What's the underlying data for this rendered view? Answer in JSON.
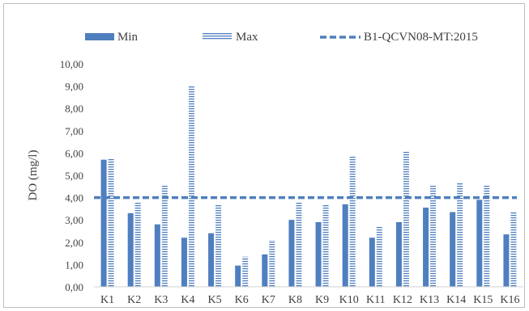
{
  "chart_data": {
    "type": "bar",
    "title": "",
    "xlabel": "",
    "ylabel": "DO (mg/l)",
    "ylim": [
      0,
      10
    ],
    "ytick_step": 1,
    "ytick_labels": [
      "0,00",
      "1,00",
      "2,00",
      "3,00",
      "4,00",
      "5,00",
      "6,00",
      "7,00",
      "8,00",
      "9,00",
      "10,00"
    ],
    "grid": false,
    "legend_position": "top",
    "categories": [
      "K1",
      "K2",
      "K3",
      "K4",
      "K5",
      "K6",
      "K7",
      "K8",
      "K9",
      "K10",
      "K11",
      "K12",
      "K13",
      "K14",
      "K15",
      "K16"
    ],
    "series": [
      {
        "name": "Min",
        "style": "solid",
        "color": "#4f7fbf",
        "values": [
          5.7,
          3.3,
          2.8,
          2.2,
          2.4,
          0.95,
          1.45,
          3.0,
          2.9,
          3.7,
          2.2,
          2.9,
          3.55,
          3.35,
          3.9,
          2.35
        ]
      },
      {
        "name": "Max",
        "style": "hatched",
        "color": "#4f7fbf",
        "values": [
          5.75,
          3.8,
          4.55,
          9.0,
          3.7,
          1.35,
          2.1,
          3.8,
          3.7,
          5.85,
          2.7,
          6.05,
          4.55,
          4.65,
          4.55,
          3.35
        ]
      }
    ],
    "reference_line": {
      "name": "B1-QCVN08-MT:2015",
      "value": 4.0,
      "style": "dashed",
      "color": "#4f7fbf"
    }
  }
}
